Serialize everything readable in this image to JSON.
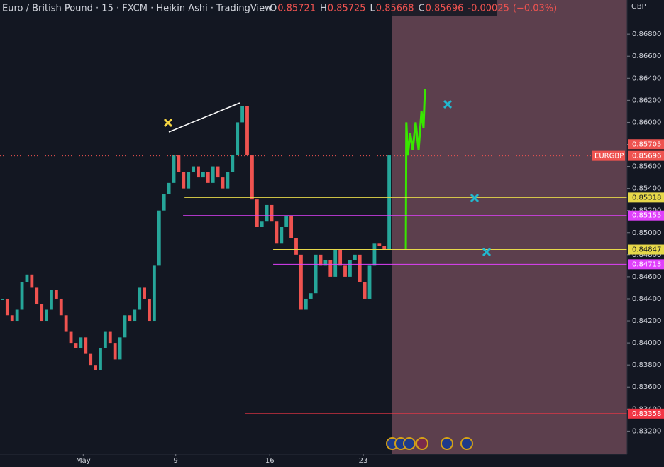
{
  "chart_data": {
    "type": "candlestick",
    "title": "Euro / British Pound · 15 · FXCM · Heikin Ashi · TradingView",
    "ohlc": [
      {
        "label": "O",
        "value": 0.85721
      },
      {
        "label": "H",
        "value": 0.85725
      },
      {
        "label": "L",
        "value": 0.85668
      },
      {
        "label": "C",
        "value": 0.85696
      }
    ],
    "change": -0.00025,
    "change_pct": "(−0.03%)",
    "currency": "GBP",
    "symbol": "EURGBP",
    "up_color": "#26a69a",
    "down_color": "#ef5350",
    "values": [
      0.844,
      0.8425,
      0.842,
      0.843,
      0.8455,
      0.8462,
      0.845,
      0.8435,
      0.842,
      0.843,
      0.8448,
      0.844,
      0.8425,
      0.841,
      0.84,
      0.8395,
      0.8405,
      0.839,
      0.838,
      0.8375,
      0.8395,
      0.841,
      0.84,
      0.8385,
      0.8405,
      0.8425,
      0.842,
      0.843,
      0.845,
      0.844,
      0.842,
      0.847,
      0.852,
      0.8535,
      0.8545,
      0.857,
      0.8555,
      0.854,
      0.8555,
      0.856,
      0.855,
      0.8555,
      0.8545,
      0.856,
      0.855,
      0.854,
      0.8555,
      0.857,
      0.86,
      0.8615,
      0.857,
      0.853,
      0.8505,
      0.851,
      0.8525,
      0.851,
      0.849,
      0.8505,
      0.8515,
      0.8495,
      0.848,
      0.843,
      0.844,
      0.8445,
      0.848,
      0.847,
      0.8475,
      0.846,
      0.8485,
      0.847,
      0.846,
      0.8475,
      0.848,
      0.8455,
      0.844,
      0.847,
      0.849,
      0.8488,
      0.8485,
      0.857
    ],
    "forecast": {
      "color": "#39e600",
      "x": [
        82.4,
        82.5,
        82.8,
        83.3,
        83.8,
        84.4,
        85.0,
        85.6,
        86.0,
        86.3
      ],
      "values": [
        0.8485,
        0.86,
        0.857,
        0.859,
        0.8575,
        0.86,
        0.8575,
        0.861,
        0.8595,
        0.863
      ]
    },
    "last_price": 0.85696,
    "last_high": 0.85705,
    "levels": [
      {
        "value": 0.85318,
        "color": "#e6d84a",
        "from": 37.2
      },
      {
        "value": 0.85155,
        "color": "#e040fb",
        "from": 36.9
      },
      {
        "value": 0.84847,
        "color": "#e6d84a",
        "from": 55.3
      },
      {
        "value": 0.84713,
        "color": "#e040fb",
        "from": 55.3
      },
      {
        "value": 0.83358,
        "color": "#f23645",
        "from": 49.5
      }
    ],
    "shade_from": 79.6,
    "xlim": [
      -0.5,
      127.6
    ],
    "xticks": [
      {
        "value": 16.5,
        "label": "May"
      },
      {
        "value": 35.4,
        "label": "9"
      },
      {
        "value": 54.6,
        "label": "16"
      },
      {
        "value": 73.7,
        "label": "23"
      }
    ],
    "ylim": [
      0.8299,
      0.8711
    ],
    "yticks": [
      {
        "value": 0.832,
        "label": "0.83200"
      },
      {
        "value": 0.834,
        "label": "0.83400"
      },
      {
        "value": 0.836,
        "label": "0.83600"
      },
      {
        "value": 0.838,
        "label": "0.83800"
      },
      {
        "value": 0.84,
        "label": "0.84000"
      },
      {
        "value": 0.842,
        "label": "0.84200"
      },
      {
        "value": 0.844,
        "label": "0.84400"
      },
      {
        "value": 0.846,
        "label": "0.84600"
      },
      {
        "value": 0.848,
        "label": "0.84800"
      },
      {
        "value": 0.85,
        "label": "0.85000"
      },
      {
        "value": 0.852,
        "label": "0.85200"
      },
      {
        "value": 0.854,
        "label": "0.85400"
      },
      {
        "value": 0.856,
        "label": "0.85600"
      },
      {
        "value": 0.858,
        "label": "0.85800"
      },
      {
        "value": 0.86,
        "label": "0.86000"
      },
      {
        "value": 0.862,
        "label": "0.86200"
      },
      {
        "value": 0.864,
        "label": "0.86400"
      },
      {
        "value": 0.866,
        "label": "0.86600"
      },
      {
        "value": 0.868,
        "label": "0.86800"
      }
    ]
  }
}
